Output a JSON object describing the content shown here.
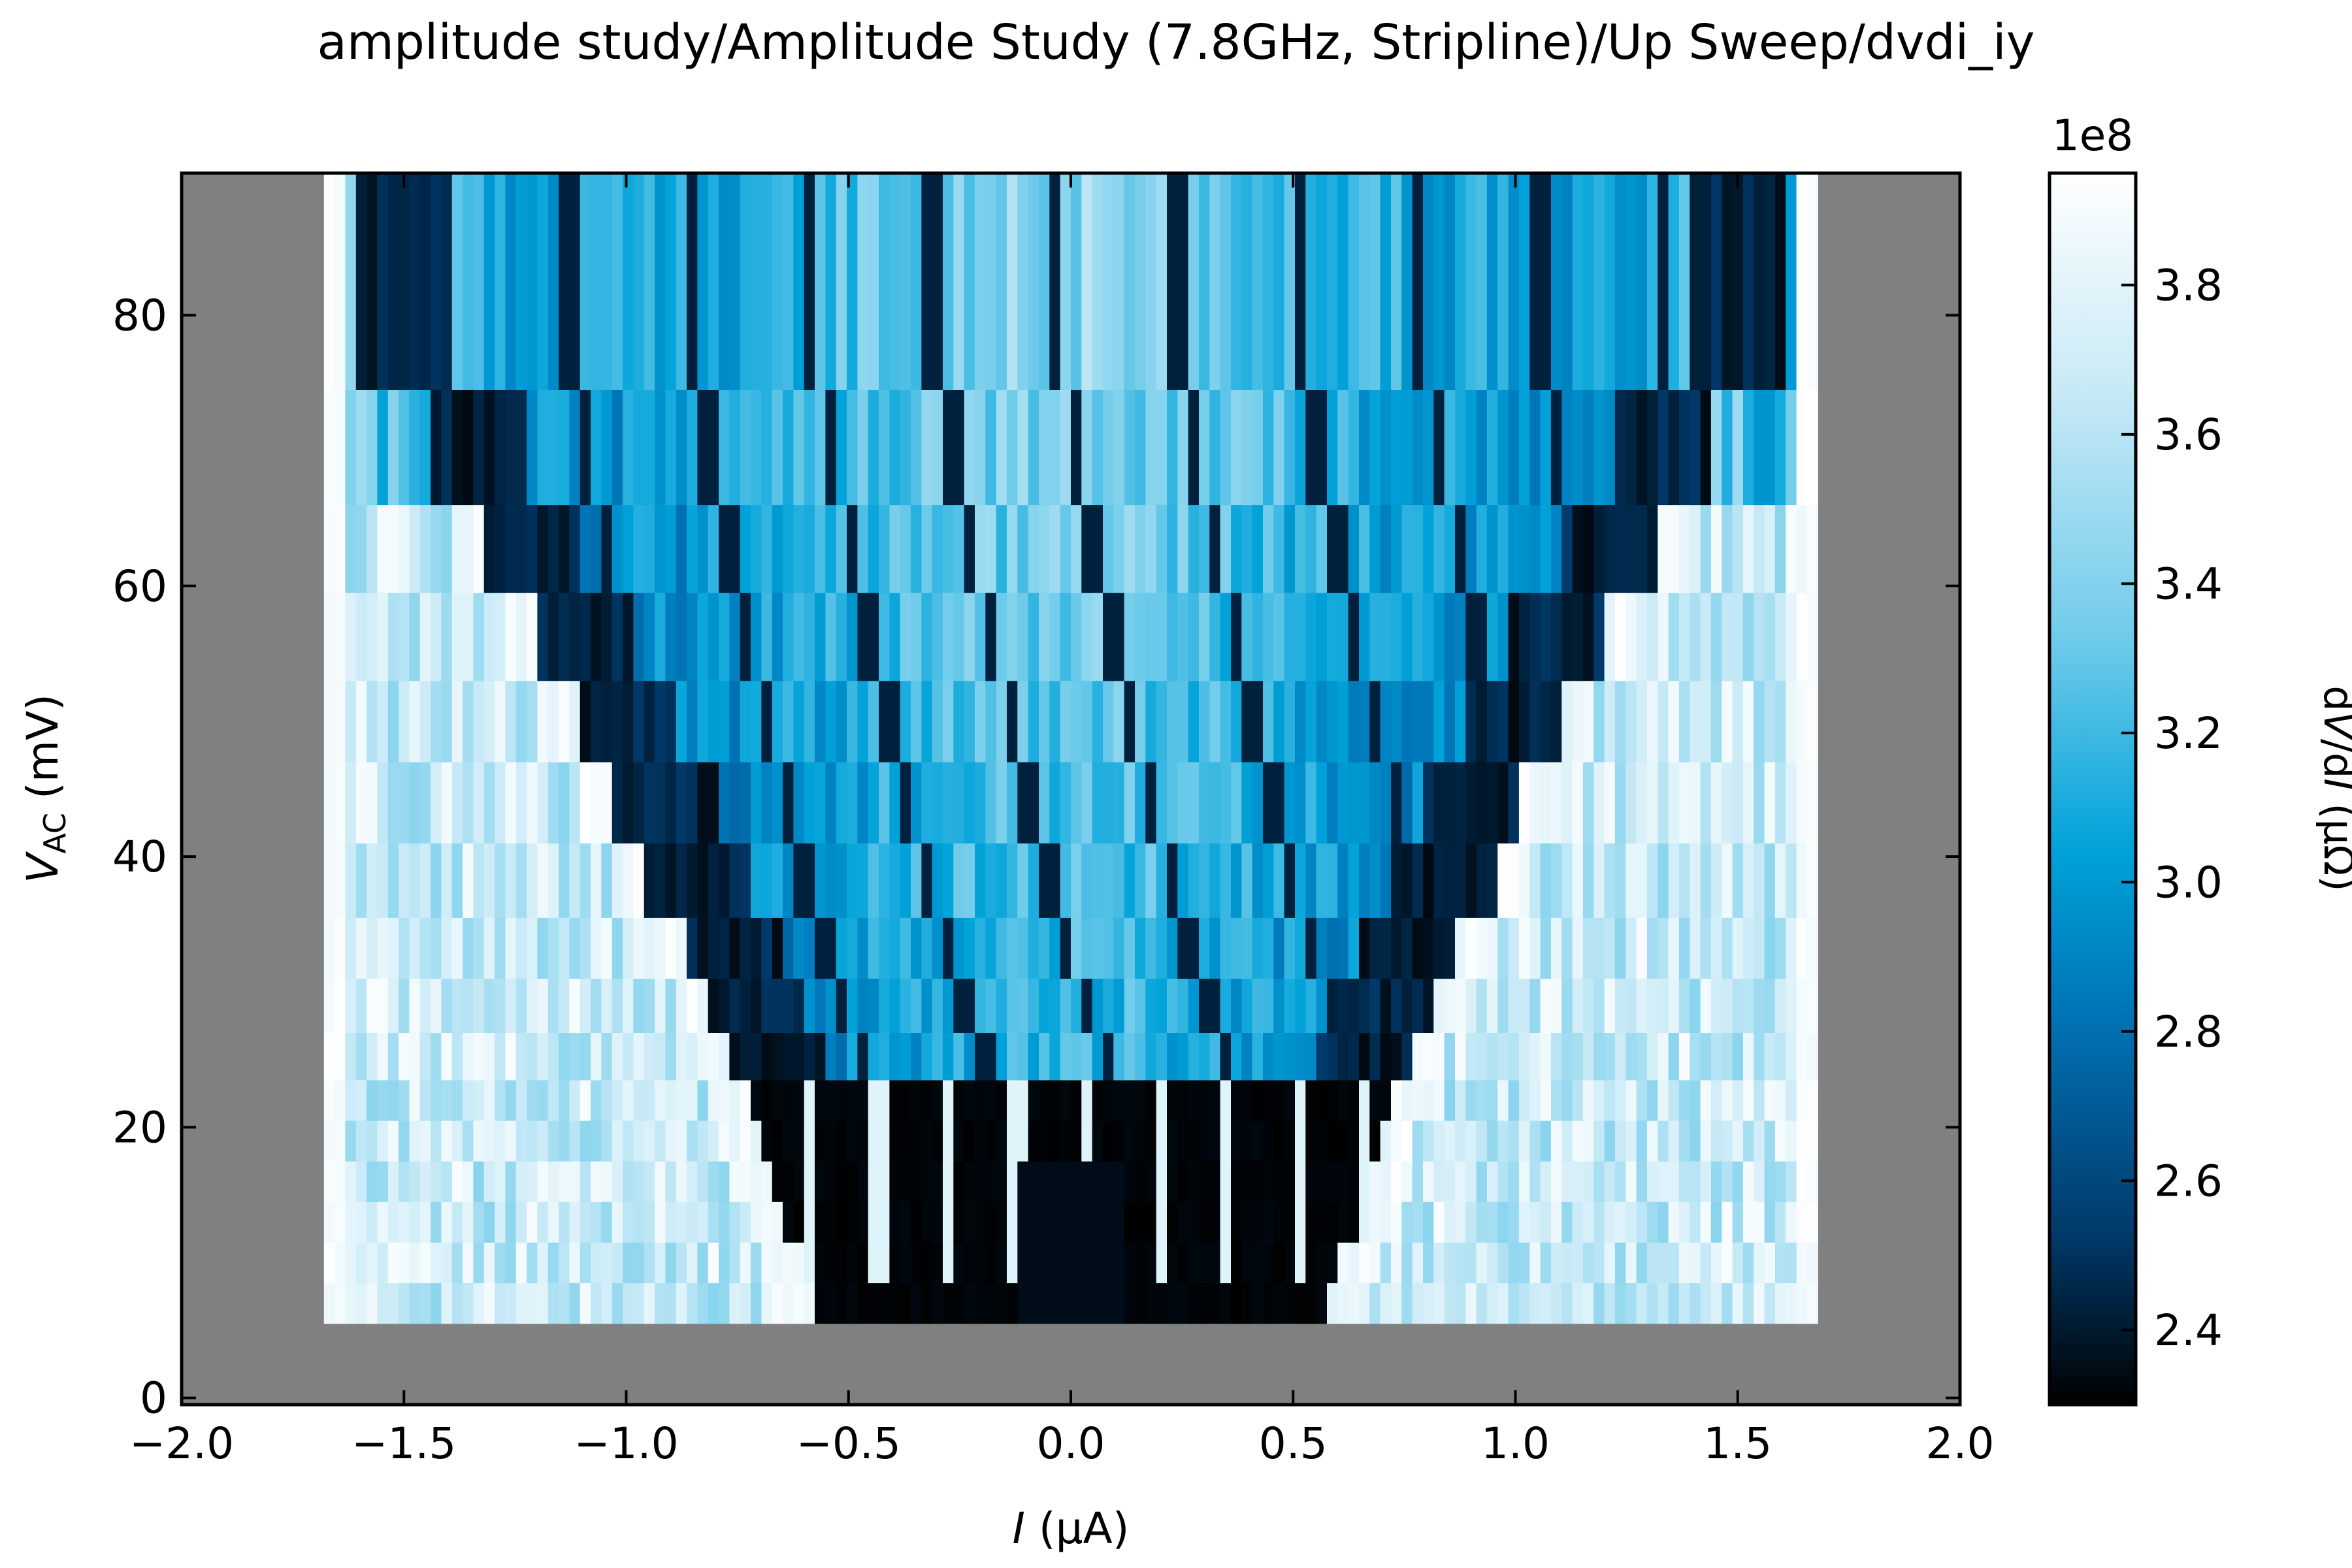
{
  "figure": {
    "title": "amplitude study/Amplitude Study (7.8GHz, Stripline)/Up Sweep/dvdi_iy"
  },
  "chart_data": {
    "type": "heatmap",
    "title": "amplitude study/Amplitude Study (7.8GHz, Stripline)/Up Sweep/dvdi_iy",
    "xlabel": "I (μA)",
    "ylabel": "V_AC (mV)",
    "xlim": [
      -2.0,
      2.0
    ],
    "ylim": [
      -0.5,
      90.5
    ],
    "x_ticks": [
      "−2.0",
      "−1.5",
      "−1.0",
      "−0.5",
      "0.0",
      "0.5",
      "1.0",
      "1.5",
      "2.0"
    ],
    "x_tick_values": [
      -2.0,
      -1.5,
      -1.0,
      -0.5,
      0.0,
      0.5,
      1.0,
      1.5,
      2.0
    ],
    "y_ticks": [
      "0",
      "20",
      "40",
      "60",
      "80"
    ],
    "y_tick_values": [
      0,
      20,
      40,
      60,
      80
    ],
    "data_extent": {
      "x": [
        -1.68,
        1.68
      ],
      "y": [
        5.5,
        90.5
      ]
    },
    "background_color": "#808080",
    "colorbar": {
      "label": "dV/dI (μΩ)",
      "multiplier": "1e8",
      "range": [
        2.3,
        3.95
      ],
      "ticks": [
        "2.4",
        "2.6",
        "2.8",
        "3.0",
        "3.2",
        "3.4",
        "3.6",
        "3.8"
      ],
      "tick_values": [
        2.4,
        2.6,
        2.8,
        3.0,
        3.2,
        3.4,
        3.6,
        3.8
      ],
      "colormap": "black-blue-white",
      "colors": [
        "#000000",
        "#003a6b",
        "#0075b8",
        "#00a2d9",
        "#6ecbea",
        "#c6e9f6",
        "#ffffff"
      ]
    },
    "rows_v_ac": [
      {
        "v": 7,
        "boundary_i": 0.58
      },
      {
        "v": 10,
        "boundary_i": 0.61
      },
      {
        "v": 13,
        "boundary_i": 0.64
      },
      {
        "v": 16,
        "boundary_i": 0.67
      },
      {
        "v": 19,
        "boundary_i": 0.7
      },
      {
        "v": 22,
        "boundary_i": 0.73
      },
      {
        "v": 25,
        "boundary_i": 0.77
      },
      {
        "v": 29,
        "boundary_i": 0.81
      },
      {
        "v": 33,
        "boundary_i": 0.87
      },
      {
        "v": 38,
        "boundary_i": 0.95
      },
      {
        "v": 44,
        "boundary_i": 1.02
      },
      {
        "v": 50,
        "boundary_i": 1.1
      },
      {
        "v": 56,
        "boundary_i": 1.2
      },
      {
        "v": 63,
        "boundary_i": 1.32
      },
      {
        "v": 69,
        "boundary_i": 1.45
      },
      {
        "v": 80,
        "boundary_i": 1.6
      }
    ],
    "legend": "none",
    "grid": false
  }
}
